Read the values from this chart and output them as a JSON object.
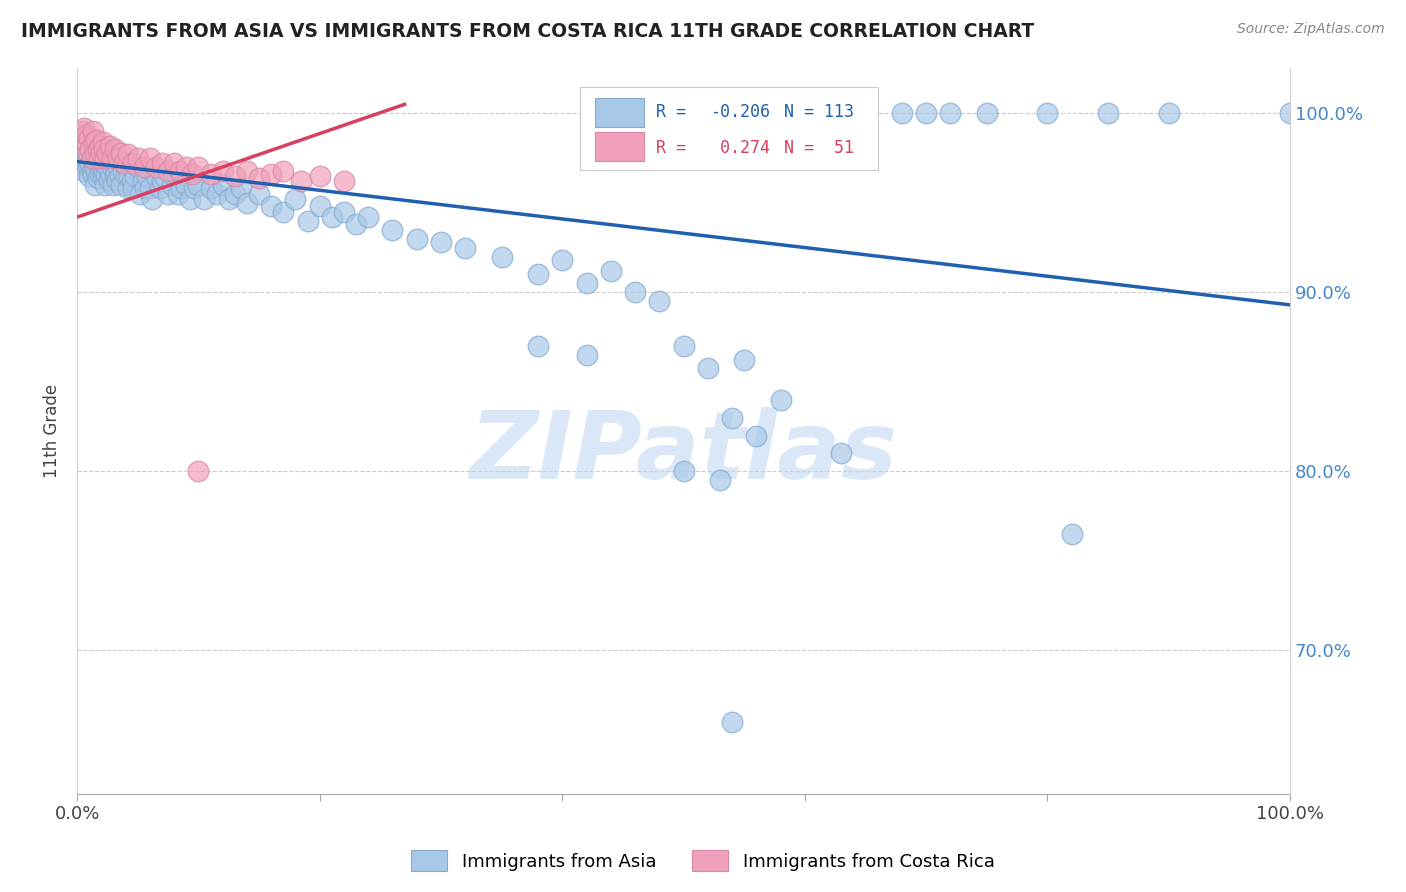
{
  "title": "IMMIGRANTS FROM ASIA VS IMMIGRANTS FROM COSTA RICA 11TH GRADE CORRELATION CHART",
  "source": "Source: ZipAtlas.com",
  "ylabel": "11th Grade",
  "xmin": 0.0,
  "xmax": 1.0,
  "ymin": 0.62,
  "ymax": 1.025,
  "yticks": [
    0.7,
    0.8,
    0.9,
    1.0
  ],
  "yticklabels": [
    "70.0%",
    "80.0%",
    "90.0%",
    "100.0%"
  ],
  "legend_blue_r": "-0.206",
  "legend_blue_n": "113",
  "legend_pink_r": "0.274",
  "legend_pink_n": "51",
  "legend_label_blue": "Immigrants from Asia",
  "legend_label_pink": "Immigrants from Costa Rica",
  "blue_color": "#a8c8e8",
  "pink_color": "#f0a0b8",
  "blue_edge_color": "#88aad0",
  "pink_edge_color": "#d888a8",
  "blue_line_color": "#2060b0",
  "pink_line_color": "#d84060",
  "title_color": "#222222",
  "right_label_color": "#4488cc",
  "watermark_color": "#c0d8f0",
  "blue_trend_x": [
    0.0,
    1.0
  ],
  "blue_trend_y": [
    0.973,
    0.893
  ],
  "pink_trend_x": [
    0.0,
    0.27
  ],
  "pink_trend_y": [
    0.942,
    1.005
  ],
  "blue_scatter_x": [
    0.004,
    0.005,
    0.006,
    0.007,
    0.008,
    0.009,
    0.009,
    0.01,
    0.011,
    0.012,
    0.012,
    0.013,
    0.014,
    0.015,
    0.015,
    0.016,
    0.016,
    0.017,
    0.018,
    0.018,
    0.019,
    0.019,
    0.02,
    0.02,
    0.021,
    0.022,
    0.022,
    0.023,
    0.024,
    0.025,
    0.025,
    0.026,
    0.027,
    0.028,
    0.029,
    0.03,
    0.031,
    0.032,
    0.033,
    0.034,
    0.035,
    0.036,
    0.038,
    0.04,
    0.04,
    0.042,
    0.043,
    0.045,
    0.046,
    0.048,
    0.05,
    0.052,
    0.054,
    0.056,
    0.058,
    0.06,
    0.062,
    0.065,
    0.068,
    0.07,
    0.072,
    0.075,
    0.078,
    0.08,
    0.083,
    0.086,
    0.09,
    0.093,
    0.096,
    0.1,
    0.105,
    0.11,
    0.115,
    0.12,
    0.125,
    0.13,
    0.135,
    0.14,
    0.15,
    0.16,
    0.17,
    0.18,
    0.19,
    0.2,
    0.21,
    0.22,
    0.23,
    0.24,
    0.26,
    0.28,
    0.3,
    0.32,
    0.35,
    0.38,
    0.4,
    0.42,
    0.44,
    0.46,
    0.48,
    0.5,
    0.52,
    0.55,
    0.6,
    0.63,
    0.65,
    0.68,
    0.7,
    0.72,
    0.75,
    0.8,
    0.85,
    0.9,
    1.0
  ],
  "blue_scatter_y": [
    0.975,
    0.97,
    0.968,
    0.972,
    0.976,
    0.97,
    0.974,
    0.965,
    0.972,
    0.968,
    0.975,
    0.966,
    0.97,
    0.972,
    0.96,
    0.975,
    0.968,
    0.964,
    0.97,
    0.975,
    0.966,
    0.972,
    0.97,
    0.975,
    0.966,
    0.968,
    0.972,
    0.96,
    0.966,
    0.97,
    0.975,
    0.963,
    0.968,
    0.965,
    0.97,
    0.96,
    0.966,
    0.968,
    0.963,
    0.97,
    0.965,
    0.96,
    0.968,
    0.965,
    0.97,
    0.958,
    0.965,
    0.962,
    0.958,
    0.965,
    0.97,
    0.955,
    0.962,
    0.958,
    0.965,
    0.958,
    0.952,
    0.965,
    0.958,
    0.962,
    0.965,
    0.955,
    0.96,
    0.965,
    0.955,
    0.958,
    0.96,
    0.952,
    0.958,
    0.96,
    0.952,
    0.958,
    0.955,
    0.96,
    0.952,
    0.955,
    0.958,
    0.95,
    0.955,
    0.948,
    0.945,
    0.952,
    0.94,
    0.948,
    0.942,
    0.945,
    0.938,
    0.942,
    0.935,
    0.93,
    0.928,
    0.925,
    0.92,
    0.91,
    0.918,
    0.905,
    0.912,
    0.9,
    0.895,
    0.87,
    0.858,
    0.862,
    1.0,
    1.0,
    1.0,
    1.0,
    1.0,
    1.0,
    1.0,
    1.0,
    1.0,
    1.0,
    1.0
  ],
  "blue_scatter_x2": [
    0.38,
    0.42,
    0.5,
    0.54,
    0.58,
    0.63,
    0.82,
    0.53,
    0.56
  ],
  "blue_scatter_y2": [
    0.87,
    0.865,
    0.8,
    0.83,
    0.84,
    0.81,
    0.765,
    0.795,
    0.82
  ],
  "blue_outlier_x": [
    0.54
  ],
  "blue_outlier_y": [
    0.66
  ],
  "pink_scatter_x": [
    0.004,
    0.005,
    0.006,
    0.007,
    0.008,
    0.009,
    0.01,
    0.011,
    0.012,
    0.013,
    0.014,
    0.015,
    0.016,
    0.017,
    0.018,
    0.019,
    0.02,
    0.021,
    0.022,
    0.023,
    0.025,
    0.027,
    0.029,
    0.031,
    0.034,
    0.036,
    0.039,
    0.042,
    0.046,
    0.05,
    0.055,
    0.06,
    0.065,
    0.07,
    0.075,
    0.08,
    0.085,
    0.09,
    0.095,
    0.1,
    0.11,
    0.12,
    0.13,
    0.14,
    0.15,
    0.16,
    0.17,
    0.185,
    0.2,
    0.22,
    0.1
  ],
  "pink_scatter_y": [
    0.99,
    0.985,
    0.992,
    0.988,
    0.982,
    0.978,
    0.986,
    0.98,
    0.975,
    0.99,
    0.984,
    0.978,
    0.985,
    0.98,
    0.975,
    0.982,
    0.978,
    0.984,
    0.98,
    0.975,
    0.978,
    0.982,
    0.975,
    0.98,
    0.975,
    0.978,
    0.972,
    0.977,
    0.972,
    0.975,
    0.97,
    0.975,
    0.97,
    0.972,
    0.968,
    0.972,
    0.968,
    0.97,
    0.966,
    0.97,
    0.966,
    0.968,
    0.965,
    0.968,
    0.964,
    0.966,
    0.968,
    0.962,
    0.965,
    0.962,
    0.8
  ]
}
